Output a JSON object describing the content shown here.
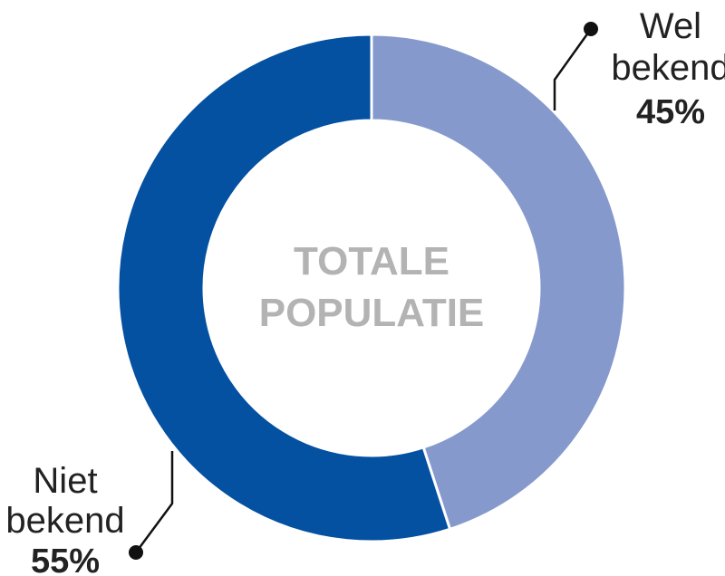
{
  "chart_data": {
    "type": "pie",
    "donut": true,
    "center_label": [
      "TOTALE",
      "POPULATIE"
    ],
    "categories": [
      "Wel bekend",
      "Niet bekend"
    ],
    "values": [
      45,
      55
    ],
    "value_labels": [
      "45%",
      "55%"
    ],
    "label_lines": [
      [
        "Wel",
        "bekend"
      ],
      [
        "Niet",
        "bekend"
      ]
    ],
    "colors": [
      "#8599cc",
      "#0450a1"
    ],
    "unit": "%"
  }
}
